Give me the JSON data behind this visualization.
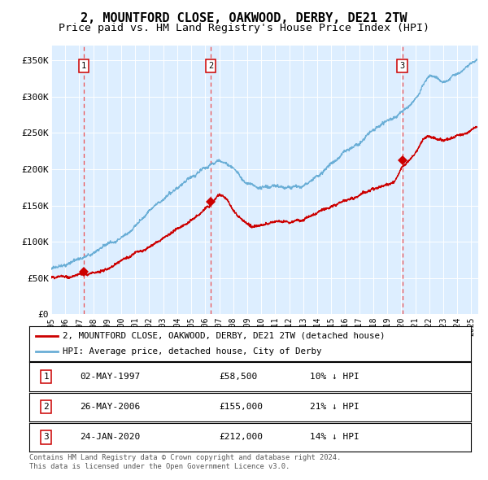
{
  "title": "2, MOUNTFORD CLOSE, OAKWOOD, DERBY, DE21 2TW",
  "subtitle": "Price paid vs. HM Land Registry's House Price Index (HPI)",
  "xlim": [
    1995.0,
    2025.5
  ],
  "ylim": [
    0,
    370000
  ],
  "yticks": [
    0,
    50000,
    100000,
    150000,
    200000,
    250000,
    300000,
    350000
  ],
  "ytick_labels": [
    "£0",
    "£50K",
    "£100K",
    "£150K",
    "£200K",
    "£250K",
    "£300K",
    "£350K"
  ],
  "xticks": [
    1995,
    1996,
    1997,
    1998,
    1999,
    2000,
    2001,
    2002,
    2003,
    2004,
    2005,
    2006,
    2007,
    2008,
    2009,
    2010,
    2011,
    2012,
    2013,
    2014,
    2015,
    2016,
    2017,
    2018,
    2019,
    2020,
    2021,
    2022,
    2023,
    2024,
    2025
  ],
  "sale_dates": [
    1997.34,
    2006.4,
    2020.07
  ],
  "sale_prices": [
    58500,
    155000,
    212000
  ],
  "sale_labels": [
    "1",
    "2",
    "3"
  ],
  "hpi_color": "#6aaed6",
  "price_color": "#cc0000",
  "vline_color": "#ee3333",
  "plot_bg_color": "#ddeeff",
  "legend_entries": [
    "2, MOUNTFORD CLOSE, OAKWOOD, DERBY, DE21 2TW (detached house)",
    "HPI: Average price, detached house, City of Derby"
  ],
  "table_rows": [
    [
      "1",
      "02-MAY-1997",
      "£58,500",
      "10% ↓ HPI"
    ],
    [
      "2",
      "26-MAY-2006",
      "£155,000",
      "21% ↓ HPI"
    ],
    [
      "3",
      "24-JAN-2020",
      "£212,000",
      "14% ↓ HPI"
    ]
  ],
  "footnote": "Contains HM Land Registry data © Crown copyright and database right 2024.\nThis data is licensed under the Open Government Licence v3.0.",
  "title_fontsize": 11,
  "subtitle_fontsize": 9.5,
  "hpi_anchors_x": [
    1995,
    1996,
    1997,
    1998,
    1999,
    2000,
    2001,
    2002,
    2003,
    2004,
    2005,
    2006,
    2007,
    2008,
    2009,
    2010,
    2011,
    2012,
    2013,
    2014,
    2015,
    2016,
    2017,
    2018,
    2019,
    2020,
    2021,
    2022,
    2023,
    2024,
    2025
  ],
  "hpi_anchors_y": [
    63000,
    67000,
    72000,
    80000,
    92000,
    105000,
    122000,
    140000,
    155000,
    168000,
    180000,
    193000,
    205000,
    195000,
    175000,
    168000,
    170000,
    168000,
    172000,
    183000,
    197000,
    213000,
    225000,
    238000,
    248000,
    258000,
    275000,
    302000,
    292000,
    303000,
    315000
  ],
  "price_anchors_x": [
    1995,
    1997.34,
    2006.4,
    2007.0,
    2007.5,
    2008.0,
    2008.5,
    2009.0,
    2009.5,
    2010.0,
    2010.5,
    2011.0,
    2012.0,
    2013.0,
    2014.0,
    2015.0,
    2016.0,
    2017.0,
    2018.0,
    2019.0,
    2019.5,
    2020.07,
    2020.5,
    2021.0,
    2022.0,
    2023.0,
    2024.0,
    2025.0
  ],
  "price_anchors_y": [
    52000,
    58500,
    155000,
    168000,
    162000,
    148000,
    138000,
    132000,
    128000,
    130000,
    133000,
    138000,
    135000,
    140000,
    148000,
    155000,
    163000,
    170000,
    178000,
    190000,
    195000,
    212000,
    218000,
    228000,
    250000,
    248000,
    255000,
    262000
  ]
}
